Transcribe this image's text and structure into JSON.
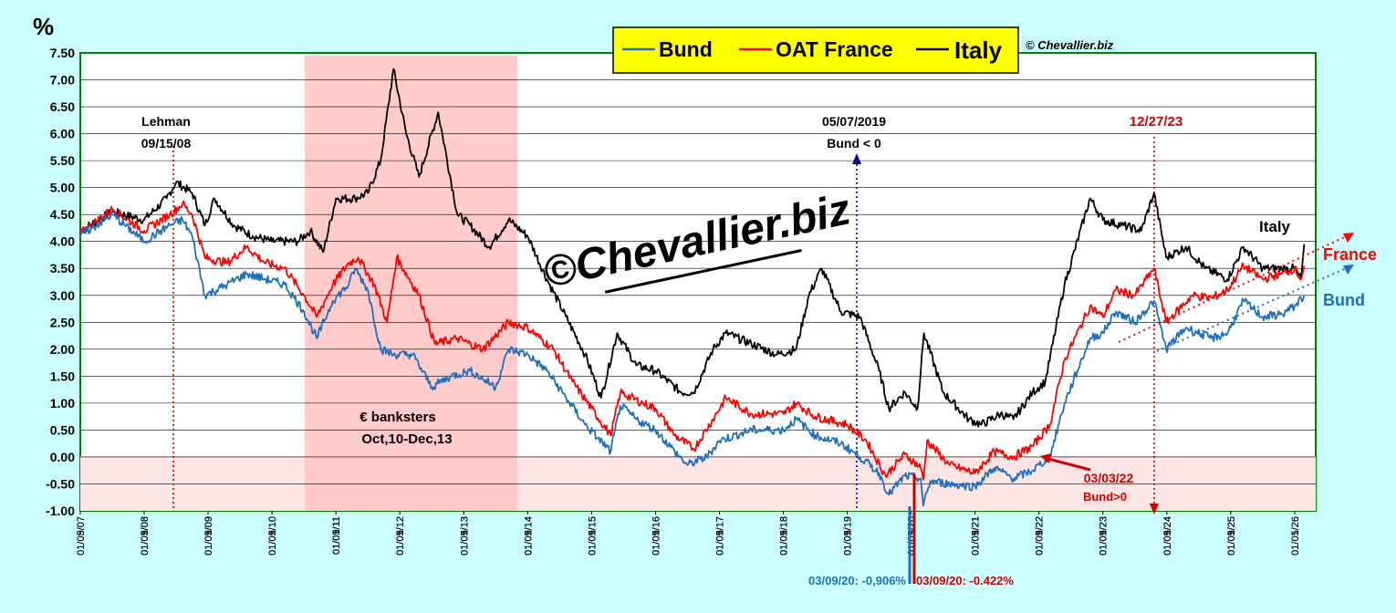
{
  "chart_data": {
    "type": "line",
    "y_unit": "%",
    "ylim": [
      -1.0,
      7.5
    ],
    "y_ticks": [
      "7.50",
      "7.00",
      "6.50",
      "6.00",
      "5.50",
      "5.00",
      "4.50",
      "4.00",
      "3.50",
      "3.00",
      "2.50",
      "2.00",
      "1.50",
      "1.00",
      "0.50",
      "0.00",
      "-0.50",
      "-1.00"
    ],
    "x_ticks": [
      "01/05/07",
      "01/09/07",
      "01/01/08",
      "01/05/08",
      "01/09/08",
      "01/01/09",
      "01/05/09",
      "01/09/09",
      "01/01/10",
      "01/05/10",
      "01/09/10",
      "01/01/11",
      "01/05/11",
      "01/09/11",
      "01/01/12",
      "01/05/12",
      "01/09/12",
      "01/01/13",
      "01/05/13",
      "01/09/13",
      "01/01/14",
      "01/05/14",
      "01/09/14",
      "01/01/15",
      "01/05/15",
      "01/09/15",
      "01/01/16",
      "01/05/16",
      "01/09/16",
      "01/01/17",
      "01/05/17",
      "01/09/17",
      "01/01/18",
      "01/05/18",
      "01/09/18",
      "01/01/19",
      "01/05/19",
      "01/09/19",
      "01/01/20",
      "01/05/20",
      "01/09/20",
      "01/01/21",
      "01/05/21",
      "01/09/21",
      "01/01/22",
      "01/05/22",
      "01/09/22",
      "01/01/23",
      "01/05/23",
      "01/09/23",
      "01/01/24",
      "01/05/24",
      "01/09/24",
      "01/01/25",
      "01/05/25",
      "01/09/25",
      "01/01/26",
      "01/05/26"
    ],
    "grid": true,
    "legend_position": "top-center",
    "colors": {
      "Bund": "#1f6fbf",
      "OAT France": "#ff0000",
      "Italy": "#000000"
    },
    "series": [
      {
        "name": "Bund",
        "points": [
          [
            2007.0,
            4.1
          ],
          [
            2007.5,
            4.5
          ],
          [
            2008.0,
            4.0
          ],
          [
            2008.4,
            4.3
          ],
          [
            2008.6,
            4.4
          ],
          [
            2008.75,
            4.1
          ],
          [
            2008.95,
            3.0
          ],
          [
            2009.3,
            3.2
          ],
          [
            2009.6,
            3.4
          ],
          [
            2009.9,
            3.3
          ],
          [
            2010.2,
            3.2
          ],
          [
            2010.5,
            2.7
          ],
          [
            2010.7,
            2.2
          ],
          [
            2010.95,
            2.9
          ],
          [
            2011.2,
            3.2
          ],
          [
            2011.3,
            3.5
          ],
          [
            2011.5,
            3.1
          ],
          [
            2011.7,
            2.0
          ],
          [
            2011.9,
            1.9
          ],
          [
            2012.2,
            1.9
          ],
          [
            2012.5,
            1.3
          ],
          [
            2012.8,
            1.5
          ],
          [
            2013.1,
            1.6
          ],
          [
            2013.5,
            1.3
          ],
          [
            2013.7,
            2.0
          ],
          [
            2014.0,
            1.9
          ],
          [
            2014.3,
            1.6
          ],
          [
            2014.6,
            1.1
          ],
          [
            2014.9,
            0.6
          ],
          [
            2015.1,
            0.35
          ],
          [
            2015.3,
            0.1
          ],
          [
            2015.45,
            0.95
          ],
          [
            2015.7,
            0.7
          ],
          [
            2016.0,
            0.5
          ],
          [
            2016.3,
            0.1
          ],
          [
            2016.5,
            -0.15
          ],
          [
            2016.8,
            0.0
          ],
          [
            2017.0,
            0.3
          ],
          [
            2017.5,
            0.5
          ],
          [
            2018.0,
            0.5
          ],
          [
            2018.2,
            0.7
          ],
          [
            2018.5,
            0.4
          ],
          [
            2018.9,
            0.25
          ],
          [
            2019.2,
            0.0
          ],
          [
            2019.5,
            -0.3
          ],
          [
            2019.65,
            -0.7
          ],
          [
            2019.9,
            -0.35
          ],
          [
            2020.15,
            -0.4
          ],
          [
            2020.19,
            -0.906
          ],
          [
            2020.3,
            -0.45
          ],
          [
            2020.6,
            -0.5
          ],
          [
            2021.0,
            -0.55
          ],
          [
            2021.3,
            -0.2
          ],
          [
            2021.6,
            -0.4
          ],
          [
            2021.9,
            -0.25
          ],
          [
            2022.17,
            0.0
          ],
          [
            2022.4,
            1.0
          ],
          [
            2022.8,
            2.2
          ],
          [
            2023.0,
            2.3
          ],
          [
            2023.2,
            2.7
          ],
          [
            2023.5,
            2.5
          ],
          [
            2023.8,
            2.9
          ],
          [
            2023.99,
            2.0
          ],
          [
            2024.3,
            2.4
          ],
          [
            2024.7,
            2.2
          ],
          [
            2024.95,
            2.3
          ],
          [
            2025.2,
            2.9
          ],
          [
            2025.5,
            2.6
          ],
          [
            2025.8,
            2.65
          ],
          [
            2026.0,
            2.8
          ],
          [
            2026.15,
            3.0
          ]
        ]
      },
      {
        "name": "OAT France",
        "points": [
          [
            2007.0,
            4.15
          ],
          [
            2007.5,
            4.6
          ],
          [
            2008.0,
            4.2
          ],
          [
            2008.4,
            4.5
          ],
          [
            2008.6,
            4.7
          ],
          [
            2008.75,
            4.5
          ],
          [
            2008.95,
            3.7
          ],
          [
            2009.3,
            3.6
          ],
          [
            2009.6,
            3.9
          ],
          [
            2009.9,
            3.6
          ],
          [
            2010.2,
            3.5
          ],
          [
            2010.5,
            3.0
          ],
          [
            2010.7,
            2.6
          ],
          [
            2010.95,
            3.2
          ],
          [
            2011.2,
            3.6
          ],
          [
            2011.35,
            3.7
          ],
          [
            2011.6,
            3.2
          ],
          [
            2011.8,
            2.5
          ],
          [
            2011.95,
            3.7
          ],
          [
            2012.3,
            3.0
          ],
          [
            2012.55,
            2.1
          ],
          [
            2012.9,
            2.2
          ],
          [
            2013.3,
            2.0
          ],
          [
            2013.7,
            2.5
          ],
          [
            2014.0,
            2.4
          ],
          [
            2014.4,
            2.0
          ],
          [
            2014.7,
            1.4
          ],
          [
            2015.0,
            0.9
          ],
          [
            2015.3,
            0.4
          ],
          [
            2015.45,
            1.2
          ],
          [
            2015.8,
            1.0
          ],
          [
            2016.0,
            0.9
          ],
          [
            2016.3,
            0.4
          ],
          [
            2016.6,
            0.15
          ],
          [
            2016.9,
            0.7
          ],
          [
            2017.1,
            1.1
          ],
          [
            2017.5,
            0.8
          ],
          [
            2018.0,
            0.8
          ],
          [
            2018.2,
            1.0
          ],
          [
            2018.5,
            0.75
          ],
          [
            2019.0,
            0.6
          ],
          [
            2019.3,
            0.3
          ],
          [
            2019.6,
            -0.35
          ],
          [
            2019.9,
            0.05
          ],
          [
            2020.15,
            -0.2
          ],
          [
            2020.19,
            -0.422
          ],
          [
            2020.25,
            0.3
          ],
          [
            2020.6,
            -0.15
          ],
          [
            2021.0,
            -0.3
          ],
          [
            2021.3,
            0.1
          ],
          [
            2021.6,
            0.0
          ],
          [
            2021.9,
            0.2
          ],
          [
            2022.17,
            0.6
          ],
          [
            2022.4,
            1.8
          ],
          [
            2022.8,
            2.8
          ],
          [
            2023.0,
            2.6
          ],
          [
            2023.2,
            3.1
          ],
          [
            2023.5,
            3.0
          ],
          [
            2023.8,
            3.5
          ],
          [
            2023.99,
            2.5
          ],
          [
            2024.4,
            3.0
          ],
          [
            2024.7,
            2.95
          ],
          [
            2024.95,
            3.1
          ],
          [
            2025.2,
            3.55
          ],
          [
            2025.5,
            3.3
          ],
          [
            2025.8,
            3.4
          ],
          [
            2026.0,
            3.5
          ],
          [
            2026.1,
            3.3
          ],
          [
            2026.15,
            3.55
          ]
        ]
      },
      {
        "name": "Italy",
        "points": [
          [
            2007.0,
            4.2
          ],
          [
            2007.5,
            4.55
          ],
          [
            2008.0,
            4.4
          ],
          [
            2008.35,
            4.8
          ],
          [
            2008.5,
            5.1
          ],
          [
            2008.75,
            4.9
          ],
          [
            2008.95,
            4.3
          ],
          [
            2009.1,
            4.8
          ],
          [
            2009.4,
            4.3
          ],
          [
            2009.7,
            4.1
          ],
          [
            2010.0,
            4.0
          ],
          [
            2010.4,
            4.0
          ],
          [
            2010.6,
            4.2
          ],
          [
            2010.8,
            3.8
          ],
          [
            2011.0,
            4.8
          ],
          [
            2011.3,
            4.8
          ],
          [
            2011.5,
            4.9
          ],
          [
            2011.7,
            5.5
          ],
          [
            2011.9,
            7.2
          ],
          [
            2012.1,
            6.0
          ],
          [
            2012.3,
            5.2
          ],
          [
            2012.6,
            6.4
          ],
          [
            2012.9,
            4.5
          ],
          [
            2013.1,
            4.3
          ],
          [
            2013.4,
            3.9
          ],
          [
            2013.7,
            4.4
          ],
          [
            2014.0,
            4.1
          ],
          [
            2014.3,
            3.3
          ],
          [
            2014.6,
            2.6
          ],
          [
            2014.9,
            1.9
          ],
          [
            2015.15,
            1.1
          ],
          [
            2015.4,
            2.3
          ],
          [
            2015.7,
            1.7
          ],
          [
            2016.0,
            1.6
          ],
          [
            2016.4,
            1.2
          ],
          [
            2016.6,
            1.2
          ],
          [
            2016.9,
            2.0
          ],
          [
            2017.1,
            2.3
          ],
          [
            2017.5,
            2.1
          ],
          [
            2017.9,
            1.9
          ],
          [
            2018.2,
            2.0
          ],
          [
            2018.4,
            3.0
          ],
          [
            2018.6,
            3.5
          ],
          [
            2018.9,
            2.7
          ],
          [
            2019.2,
            2.6
          ],
          [
            2019.5,
            1.6
          ],
          [
            2019.65,
            0.9
          ],
          [
            2019.9,
            1.2
          ],
          [
            2020.1,
            0.9
          ],
          [
            2020.2,
            2.3
          ],
          [
            2020.5,
            1.2
          ],
          [
            2020.9,
            0.7
          ],
          [
            2021.1,
            0.6
          ],
          [
            2021.4,
            0.8
          ],
          [
            2021.6,
            0.7
          ],
          [
            2021.9,
            1.2
          ],
          [
            2022.1,
            1.4
          ],
          [
            2022.4,
            3.2
          ],
          [
            2022.8,
            4.8
          ],
          [
            2023.0,
            4.4
          ],
          [
            2023.3,
            4.3
          ],
          [
            2023.6,
            4.2
          ],
          [
            2023.8,
            4.9
          ],
          [
            2023.99,
            3.7
          ],
          [
            2024.3,
            3.9
          ],
          [
            2024.6,
            3.5
          ],
          [
            2024.95,
            3.3
          ],
          [
            2025.2,
            3.9
          ],
          [
            2025.5,
            3.5
          ],
          [
            2025.8,
            3.5
          ],
          [
            2026.0,
            3.5
          ],
          [
            2026.1,
            3.3
          ],
          [
            2026.15,
            3.95
          ]
        ]
      }
    ],
    "annotations": {
      "lehman_1": "Lehman",
      "lehman_2": "09/15/08",
      "banksters_1": "€ banksters",
      "banksters_2": "Oct,10-Dec,13",
      "bund_neg_1": "05/07/2019",
      "bund_neg_2": "Bund < 0",
      "date_2023": "12/27/23",
      "bund_pos_1": "03/03/22",
      "bund_pos_2": "Bund>0",
      "bund_low": "03/09/20: -0,906%",
      "oat_low": "03/09/20:  -0.422%",
      "label_italy": "Italy",
      "label_france": "France",
      "label_bund": "Bund",
      "copyright": "© Chevallier.biz",
      "watermark": "©Chevallier.biz"
    }
  }
}
